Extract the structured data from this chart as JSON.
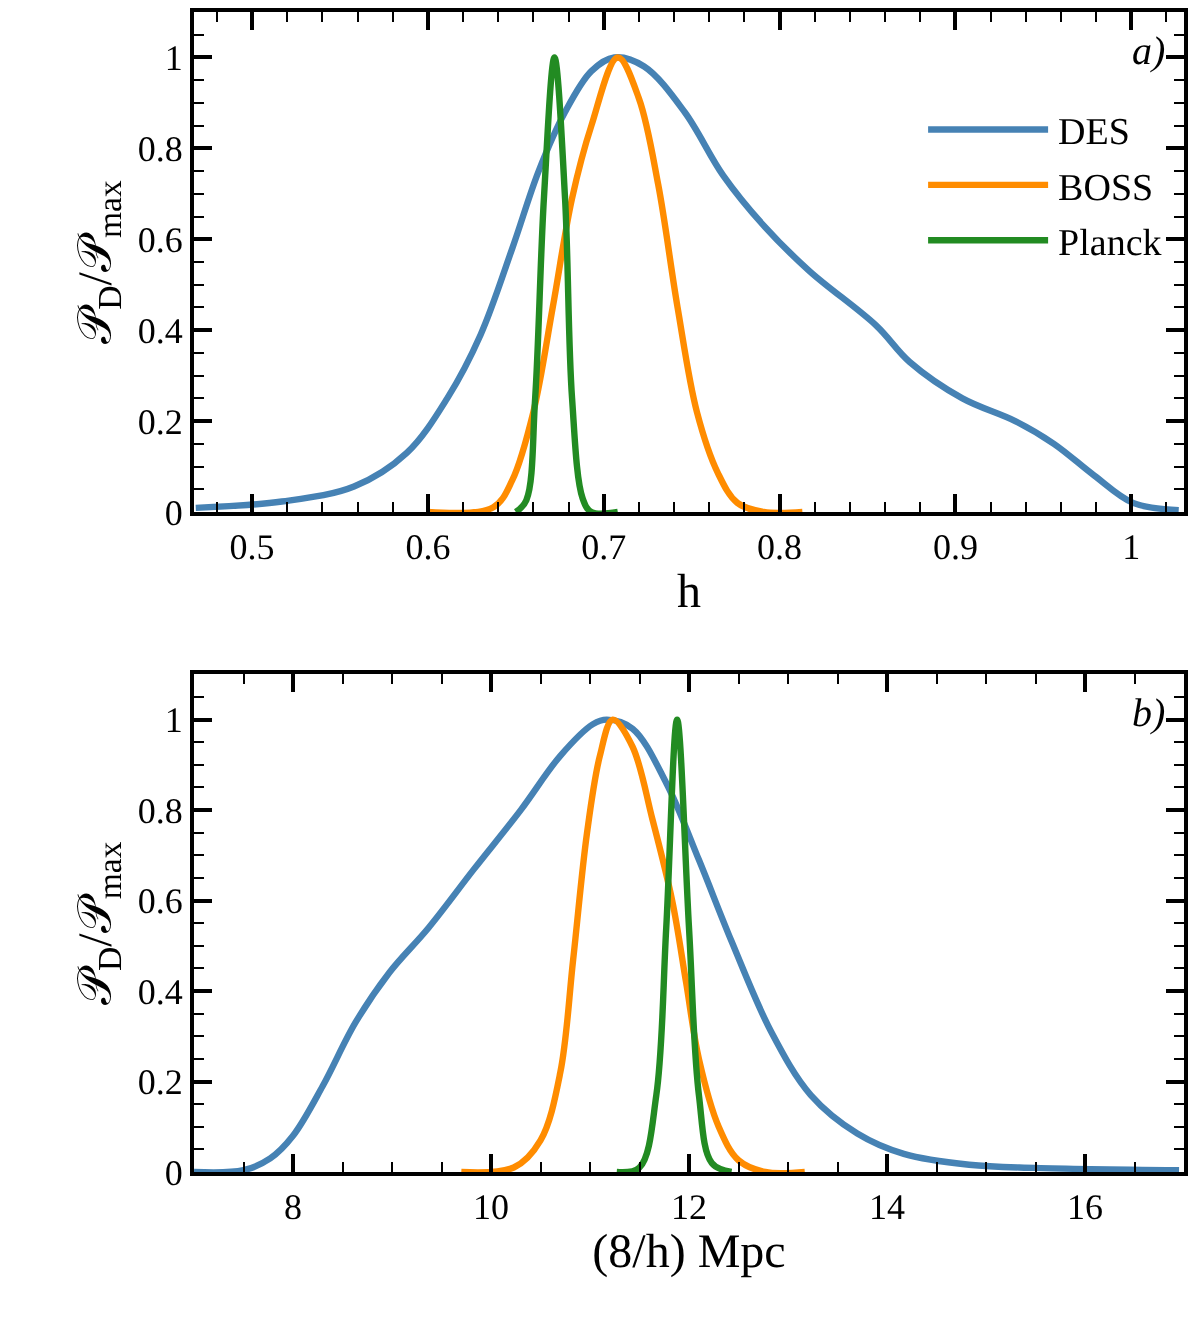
{
  "chart_data": [
    {
      "type": "line",
      "xlabel": "h",
      "ylabel": "𝒫$_{D}$/𝒫$_{max}$",
      "annotations": [
        "a)"
      ],
      "legend": "top right",
      "marker": "none",
      "line_style": "solid",
      "xlim": [
        0.467,
        1.03
      ],
      "ylim": [
        0,
        1.1
      ],
      "xticks": [
        {
          "value": 0.48,
          "label": null
        },
        0.5,
        {
          "value": 0.52,
          "label": null
        },
        {
          "value": 0.54,
          "label": null
        },
        {
          "value": 0.56,
          "label": null
        },
        {
          "value": 0.58,
          "label": null
        },
        0.6,
        {
          "value": 0.62,
          "label": null
        },
        {
          "value": 0.64,
          "label": null
        },
        {
          "value": 0.66,
          "label": null
        },
        {
          "value": 0.68,
          "label": null
        },
        0.7,
        {
          "value": 0.72,
          "label": null
        },
        {
          "value": 0.74,
          "label": null
        },
        {
          "value": 0.76,
          "label": null
        },
        {
          "value": 0.78,
          "label": null
        },
        0.8,
        {
          "value": 0.82,
          "label": null
        },
        {
          "value": 0.84,
          "label": null
        },
        {
          "value": 0.86,
          "label": null
        },
        {
          "value": 0.88,
          "label": null
        },
        0.9,
        {
          "value": 0.92,
          "label": null
        },
        {
          "value": 0.94,
          "label": null
        },
        {
          "value": 0.96,
          "label": null
        },
        {
          "value": 0.98,
          "label": null
        },
        1,
        {
          "value": 1.02,
          "label": null
        }
      ],
      "yticks": [
        0,
        {
          "value": 0.05,
          "label": null
        },
        {
          "value": 0.1,
          "label": null
        },
        {
          "value": 0.15,
          "label": null
        },
        0.2,
        {
          "value": 0.25,
          "label": null
        },
        {
          "value": 0.3,
          "label": null
        },
        {
          "value": 0.35,
          "label": null
        },
        0.4,
        {
          "value": 0.45,
          "label": null
        },
        {
          "value": 0.5,
          "label": null
        },
        {
          "value": 0.55,
          "label": null
        },
        0.6,
        {
          "value": 0.65,
          "label": null
        },
        {
          "value": 0.7,
          "label": null
        },
        {
          "value": 0.75,
          "label": null
        },
        0.8,
        {
          "value": 0.85,
          "label": null
        },
        {
          "value": 0.9,
          "label": null
        },
        {
          "value": 0.95,
          "label": null
        },
        1,
        {
          "value": 1.05,
          "label": null
        }
      ],
      "series": [
        {
          "name": "DES",
          "color": "#4682b4",
          "x": [
            0.468,
            0.517,
            0.558,
            0.588,
            0.611,
            0.63,
            0.648,
            0.663,
            0.678,
            0.693,
            0.706,
            0.723,
            0.746,
            0.768,
            0.791,
            0.817,
            0.855,
            0.874,
            0.904,
            0.934,
            0.956,
            0.979,
            1.001,
            1.027
          ],
          "values": [
            0.009,
            0.023,
            0.056,
            0.13,
            0.25,
            0.39,
            0.58,
            0.75,
            0.88,
            0.97,
            1.0,
            0.98,
            0.88,
            0.74,
            0.63,
            0.53,
            0.41,
            0.33,
            0.25,
            0.2,
            0.15,
            0.08,
            0.02,
            0.004
          ]
        },
        {
          "name": "BOSS",
          "color": "#ff8c00",
          "x": [
            0.6,
            0.637,
            0.648,
            0.66,
            0.671,
            0.682,
            0.693,
            0.708,
            0.72,
            0.731,
            0.742,
            0.753,
            0.765,
            0.776,
            0.791,
            0.813
          ],
          "values": [
            0,
            0.01,
            0.07,
            0.22,
            0.45,
            0.69,
            0.85,
            1.0,
            0.91,
            0.72,
            0.45,
            0.22,
            0.085,
            0.02,
            0,
            0
          ]
        },
        {
          "name": "Planck",
          "color": "#228b22",
          "x": [
            0.65,
            0.656,
            0.661,
            0.666,
            0.672,
            0.678,
            0.682,
            0.688,
            0.693,
            0.708
          ],
          "values": [
            0,
            0.026,
            0.25,
            0.69,
            1.0,
            0.69,
            0.25,
            0.03,
            0,
            0
          ]
        }
      ]
    },
    {
      "type": "line",
      "xlabel": "(8/h) Mpc",
      "ylabel": "𝒫$_{D}$/𝒫$_{max}$",
      "annotations": [
        "b)"
      ],
      "marker": "none",
      "line_style": "solid",
      "xlim": [
        7,
        17
      ],
      "ylim": [
        0,
        1.1
      ],
      "xticks": [
        {
          "value": 7,
          "label": null
        },
        {
          "value": 7.5,
          "label": null
        },
        8,
        {
          "value": 8.5,
          "label": null
        },
        {
          "value": 9,
          "label": null
        },
        {
          "value": 9.5,
          "label": null
        },
        10,
        {
          "value": 10.5,
          "label": null
        },
        {
          "value": 11,
          "label": null
        },
        {
          "value": 11.5,
          "label": null
        },
        12,
        {
          "value": 12.5,
          "label": null
        },
        {
          "value": 13,
          "label": null
        },
        {
          "value": 13.5,
          "label": null
        },
        14,
        {
          "value": 14.5,
          "label": null
        },
        {
          "value": 15,
          "label": null
        },
        {
          "value": 15.5,
          "label": null
        },
        16,
        {
          "value": 16.5,
          "label": null
        }
      ],
      "yticks": [
        0,
        {
          "value": 0.05,
          "label": null
        },
        {
          "value": 0.1,
          "label": null
        },
        {
          "value": 0.15,
          "label": null
        },
        0.2,
        {
          "value": 0.25,
          "label": null
        },
        {
          "value": 0.3,
          "label": null
        },
        {
          "value": 0.35,
          "label": null
        },
        0.4,
        {
          "value": 0.45,
          "label": null
        },
        {
          "value": 0.5,
          "label": null
        },
        {
          "value": 0.55,
          "label": null
        },
        0.6,
        {
          "value": 0.65,
          "label": null
        },
        {
          "value": 0.7,
          "label": null
        },
        {
          "value": 0.75,
          "label": null
        },
        0.8,
        {
          "value": 0.85,
          "label": null
        },
        {
          "value": 0.9,
          "label": null
        },
        {
          "value": 0.95,
          "label": null
        },
        1,
        {
          "value": 1.05,
          "label": null
        }
      ],
      "series": [
        {
          "color": "#4682b4",
          "x": [
            7.0,
            7.5,
            7.77,
            8.0,
            8.3,
            8.63,
            8.97,
            9.37,
            9.83,
            10.3,
            10.7,
            11.03,
            11.17,
            11.43,
            11.77,
            12.1,
            12.43,
            12.83,
            13.23,
            13.7,
            14.17,
            14.83,
            15.5,
            16.95
          ],
          "values": [
            0,
            0.004,
            0.03,
            0.08,
            0.19,
            0.33,
            0.44,
            0.54,
            0.67,
            0.8,
            0.92,
            0.99,
            1.0,
            0.98,
            0.86,
            0.69,
            0.51,
            0.31,
            0.17,
            0.085,
            0.04,
            0.016,
            0.009,
            0.004
          ]
        },
        {
          "color": "#ff8c00",
          "x": [
            9.7,
            10.23,
            10.5,
            10.7,
            10.83,
            10.97,
            11.1,
            11.23,
            11.43,
            11.63,
            11.83,
            11.97,
            12.1,
            12.3,
            12.5,
            12.77,
            13.17
          ],
          "values": [
            0,
            0.01,
            0.07,
            0.22,
            0.47,
            0.75,
            0.92,
            1.0,
            0.94,
            0.78,
            0.6,
            0.42,
            0.25,
            0.1,
            0.026,
            0,
            0
          ]
        },
        {
          "color": "#228b22",
          "x": [
            11.27,
            11.5,
            11.67,
            11.77,
            11.88,
            12.0,
            12.1,
            12.23,
            12.43
          ],
          "values": [
            0,
            0.01,
            0.17,
            0.54,
            1.0,
            0.54,
            0.17,
            0.02,
            0
          ]
        }
      ]
    }
  ]
}
